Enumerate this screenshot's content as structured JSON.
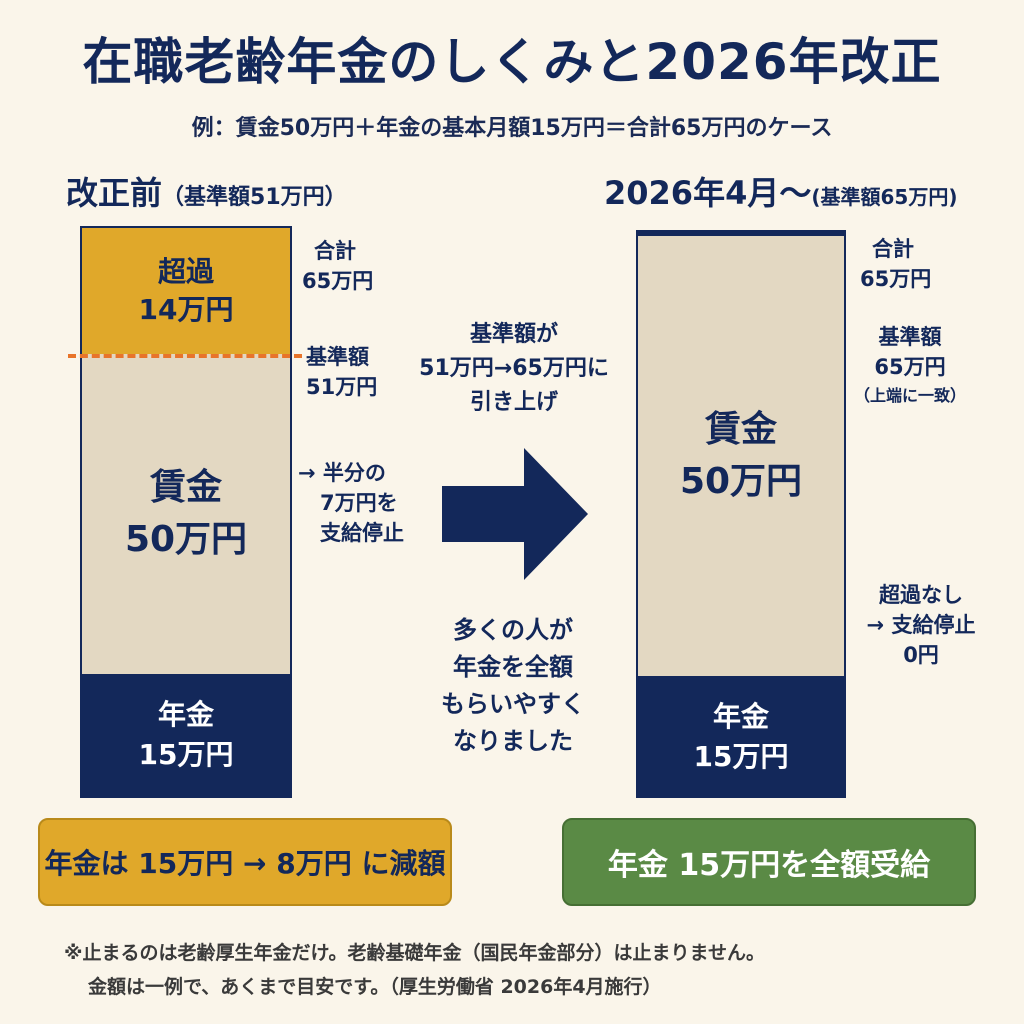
{
  "title": "在職老齢年金のしくみと2026年改正",
  "subtitle": "例：賃金50万円＋年金の基本月額15万円＝合計65万円のケース",
  "before": {
    "heading": "改正前",
    "heading_sub": "（基準額51万円）",
    "excess_line1": "超過",
    "excess_line2": "14万円",
    "wage_line1": "賃金",
    "wage_line2": "50万円",
    "pension_line1": "年金",
    "pension_line2": "15万円",
    "total_line1": "合計",
    "total_line2": "65万円",
    "threshold_line1": "基準額",
    "threshold_line2": "51万円",
    "stop_line1": "→ 半分の",
    "stop_line2": "7万円を",
    "stop_line3": "支給停止",
    "result": "年金は 15万円 → 8万円 に減額"
  },
  "middle": {
    "raise_line1": "基準額が",
    "raise_line2": "51万円→65万円に",
    "raise_line3": "引き上げ",
    "effect_line1": "多くの人が",
    "effect_line2": "年金を全額",
    "effect_line3": "もらいやすく",
    "effect_line4": "なりました"
  },
  "after": {
    "heading": "2026年4月～",
    "heading_sub": "(基準額65万円)",
    "wage_line1": "賃金",
    "wage_line2": "50万円",
    "pension_line1": "年金",
    "pension_line2": "15万円",
    "total_line1": "合計",
    "total_line2": "65万円",
    "threshold_line1": "基準額",
    "threshold_line2": "65万円",
    "threshold_line3": "（上端に一致）",
    "noexcess_line1": "超過なし",
    "noexcess_line2": "→ 支給停止",
    "noexcess_line3": "0円",
    "result": "年金 15万円を全額受給"
  },
  "footer": {
    "line1": "※止まるのは老齢厚生年金だけ。老齢基礎年金（国民年金部分）は止まりません。",
    "line2": "金額は一例で、あくまで目安です。（厚生労働省 2026年4月施行）"
  },
  "colors": {
    "navy": "#13285a",
    "excess": "#e0a82a",
    "wage": "#e3d8c2",
    "threshold_line": "#e8742a",
    "green": "#5a8a45",
    "background": "#faf5ea"
  }
}
